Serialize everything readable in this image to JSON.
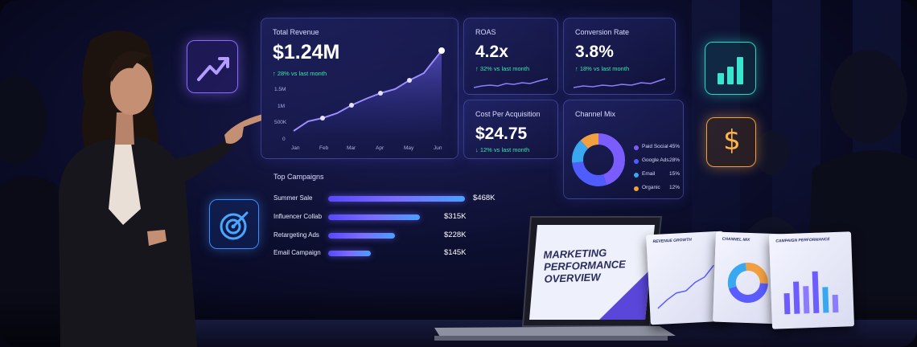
{
  "dashboard": {
    "revenue": {
      "title": "Total Revenue",
      "value": "$1.24M",
      "delta": "↑ 28% vs last month",
      "y_ticks": [
        "1.5M",
        "1M",
        "500K",
        "0"
      ],
      "x_ticks": [
        "Jan",
        "Feb",
        "Mar",
        "Apr",
        "May",
        "Jun"
      ]
    },
    "roas": {
      "title": "ROAS",
      "value": "4.2x",
      "delta": "↑ 32% vs last month"
    },
    "conversion": {
      "title": "Conversion Rate",
      "value": "3.8%",
      "delta": "↑ 18% vs last month"
    },
    "cpa": {
      "title": "Cost Per Acquisition",
      "value": "$24.75",
      "delta": "↓ 12% vs last month"
    },
    "channel_mix": {
      "title": "Channel Mix",
      "items": [
        {
          "label": "Paid Social",
          "value": "45%",
          "color": "#7a5cff"
        },
        {
          "label": "Google Ads",
          "value": "28%",
          "color": "#4f5cff"
        },
        {
          "label": "Email",
          "value": "15%",
          "color": "#3aa8f0"
        },
        {
          "label": "Organic",
          "value": "12%",
          "color": "#f0a040"
        }
      ]
    },
    "campaigns": {
      "title": "Top Campaigns",
      "rows": [
        {
          "name": "Summer Sale",
          "value": "$468K",
          "fraction": 1.0
        },
        {
          "name": "Influencer Collab",
          "value": "$315K",
          "fraction": 0.67
        },
        {
          "name": "Retargeting Ads",
          "value": "$228K",
          "fraction": 0.49
        },
        {
          "name": "Email Campaign",
          "value": "$145K",
          "fraction": 0.31
        }
      ]
    }
  },
  "laptop_slide": {
    "title_lines": [
      "MARKETING",
      "PERFORMANCE",
      "OVERVIEW"
    ]
  },
  "printed_slides": [
    {
      "title": "REVENUE GROWTH"
    },
    {
      "title": "CHANNEL MIX"
    },
    {
      "title": "CAMPAIGN PERFORMANCE"
    }
  ],
  "colors": {
    "accent": "#6d5cff",
    "positive": "#3fe6b0",
    "background": "#06071a"
  }
}
